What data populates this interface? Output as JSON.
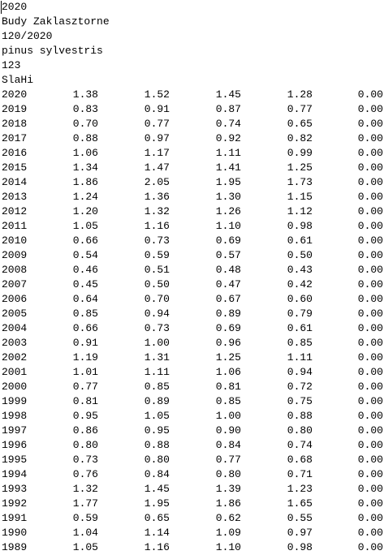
{
  "header": [
    "2020",
    "Budy Zaklasztorne",
    "120/2020",
    "pinus sylvestris",
    "123",
    "SlaHi"
  ],
  "table": {
    "rows": [
      [
        "2020",
        "1.38",
        "1.52",
        "1.45",
        "1.28",
        "0.00"
      ],
      [
        "2019",
        "0.83",
        "0.91",
        "0.87",
        "0.77",
        "0.00"
      ],
      [
        "2018",
        "0.70",
        "0.77",
        "0.74",
        "0.65",
        "0.00"
      ],
      [
        "2017",
        "0.88",
        "0.97",
        "0.92",
        "0.82",
        "0.00"
      ],
      [
        "2016",
        "1.06",
        "1.17",
        "1.11",
        "0.99",
        "0.00"
      ],
      [
        "2015",
        "1.34",
        "1.47",
        "1.41",
        "1.25",
        "0.00"
      ],
      [
        "2014",
        "1.86",
        "2.05",
        "1.95",
        "1.73",
        "0.00"
      ],
      [
        "2013",
        "1.24",
        "1.36",
        "1.30",
        "1.15",
        "0.00"
      ],
      [
        "2012",
        "1.20",
        "1.32",
        "1.26",
        "1.12",
        "0.00"
      ],
      [
        "2011",
        "1.05",
        "1.16",
        "1.10",
        "0.98",
        "0.00"
      ],
      [
        "2010",
        "0.66",
        "0.73",
        "0.69",
        "0.61",
        "0.00"
      ],
      [
        "2009",
        "0.54",
        "0.59",
        "0.57",
        "0.50",
        "0.00"
      ],
      [
        "2008",
        "0.46",
        "0.51",
        "0.48",
        "0.43",
        "0.00"
      ],
      [
        "2007",
        "0.45",
        "0.50",
        "0.47",
        "0.42",
        "0.00"
      ],
      [
        "2006",
        "0.64",
        "0.70",
        "0.67",
        "0.60",
        "0.00"
      ],
      [
        "2005",
        "0.85",
        "0.94",
        "0.89",
        "0.79",
        "0.00"
      ],
      [
        "2004",
        "0.66",
        "0.73",
        "0.69",
        "0.61",
        "0.00"
      ],
      [
        "2003",
        "0.91",
        "1.00",
        "0.96",
        "0.85",
        "0.00"
      ],
      [
        "2002",
        "1.19",
        "1.31",
        "1.25",
        "1.11",
        "0.00"
      ],
      [
        "2001",
        "1.01",
        "1.11",
        "1.06",
        "0.94",
        "0.00"
      ],
      [
        "2000",
        "0.77",
        "0.85",
        "0.81",
        "0.72",
        "0.00"
      ],
      [
        "1999",
        "0.81",
        "0.89",
        "0.85",
        "0.75",
        "0.00"
      ],
      [
        "1998",
        "0.95",
        "1.05",
        "1.00",
        "0.88",
        "0.00"
      ],
      [
        "1997",
        "0.86",
        "0.95",
        "0.90",
        "0.80",
        "0.00"
      ],
      [
        "1996",
        "0.80",
        "0.88",
        "0.84",
        "0.74",
        "0.00"
      ],
      [
        "1995",
        "0.73",
        "0.80",
        "0.77",
        "0.68",
        "0.00"
      ],
      [
        "1994",
        "0.76",
        "0.84",
        "0.80",
        "0.71",
        "0.00"
      ],
      [
        "1993",
        "1.32",
        "1.45",
        "1.39",
        "1.23",
        "0.00"
      ],
      [
        "1992",
        "1.77",
        "1.95",
        "1.86",
        "1.65",
        "0.00"
      ],
      [
        "1991",
        "0.59",
        "0.65",
        "0.62",
        "0.55",
        "0.00"
      ],
      [
        "1990",
        "1.04",
        "1.14",
        "1.09",
        "0.97",
        "0.00"
      ],
      [
        "1989",
        "1.05",
        "1.16",
        "1.10",
        "0.98",
        "0.00"
      ]
    ]
  }
}
